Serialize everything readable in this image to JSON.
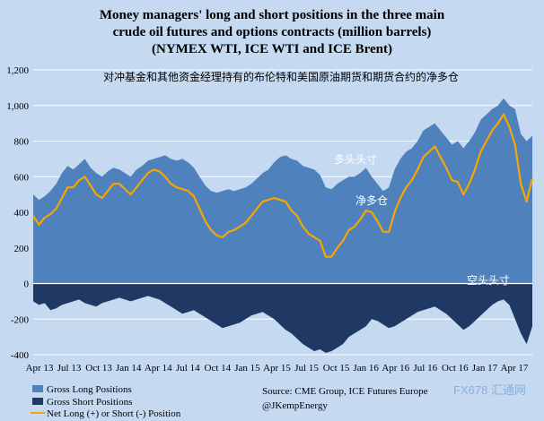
{
  "chart_data": {
    "type": "area",
    "title_lines": [
      "Money managers' long and short positions in the three main",
      "crude oil futures and options contracts (million barrels)",
      "(NYMEX WTI, ICE WTI and ICE Brent)"
    ],
    "subtitle": "对冲基金和其他资金经理持有的布伦特和美国原油期货和期货合约的净多仓",
    "ylim": [
      -400,
      1200
    ],
    "yticks": [
      "1,200",
      "1,000",
      "800",
      "600",
      "400",
      "200",
      "0",
      "-200",
      "-400"
    ],
    "ytick_values": [
      1200,
      1000,
      800,
      600,
      400,
      200,
      0,
      -200,
      -400
    ],
    "x_tick_labels": [
      "Apr 13",
      "Jul 13",
      "Oct 13",
      "Jan 14",
      "Apr 14",
      "Jul 14",
      "Oct 14",
      "Jan 15",
      "Apr 15",
      "Jul 15",
      "Oct 15",
      "Jan 16",
      "Apr 16",
      "Jul 16",
      "Oct 16",
      "Jan 17",
      "Apr 17"
    ],
    "x_start": "Apr 13",
    "x_end": "Jun 17",
    "series": [
      {
        "name": "Gross Long Positions",
        "color": "#4f81bd",
        "values": [
          500,
          470,
          490,
          520,
          560,
          620,
          660,
          640,
          670,
          700,
          650,
          620,
          600,
          630,
          650,
          640,
          620,
          600,
          640,
          660,
          690,
          700,
          710,
          720,
          700,
          690,
          700,
          680,
          650,
          600,
          550,
          520,
          510,
          520,
          530,
          520,
          530,
          540,
          560,
          590,
          620,
          640,
          680,
          710,
          720,
          700,
          690,
          660,
          650,
          640,
          610,
          540,
          530,
          560,
          580,
          600,
          600,
          620,
          650,
          600,
          560,
          520,
          540,
          640,
          700,
          740,
          760,
          800,
          860,
          880,
          900,
          860,
          820,
          780,
          800,
          760,
          800,
          850,
          920,
          950,
          980,
          1000,
          1040,
          1000,
          980,
          840,
          800,
          830
        ]
      },
      {
        "name": "Gross Short Positions",
        "color": "#1f3864",
        "values": [
          -100,
          -120,
          -110,
          -150,
          -140,
          -120,
          -110,
          -100,
          -90,
          -110,
          -120,
          -130,
          -110,
          -100,
          -90,
          -80,
          -90,
          -100,
          -90,
          -80,
          -70,
          -80,
          -90,
          -110,
          -130,
          -150,
          -170,
          -160,
          -150,
          -170,
          -190,
          -210,
          -230,
          -250,
          -240,
          -230,
          -220,
          -200,
          -180,
          -170,
          -160,
          -180,
          -200,
          -230,
          -260,
          -280,
          -310,
          -340,
          -360,
          -380,
          -370,
          -390,
          -380,
          -360,
          -340,
          -300,
          -280,
          -260,
          -240,
          -200,
          -210,
          -230,
          -250,
          -240,
          -220,
          -200,
          -180,
          -160,
          -150,
          -140,
          -130,
          -150,
          -170,
          -200,
          -230,
          -260,
          -240,
          -210,
          -180,
          -150,
          -120,
          -100,
          -90,
          -120,
          -200,
          -280,
          -340,
          -240
        ]
      },
      {
        "name": "Net Long (+) or Short (-) Position",
        "color": "#f7a600",
        "values": [
          380,
          330,
          370,
          390,
          420,
          480,
          540,
          540,
          580,
          600,
          550,
          500,
          480,
          520,
          560,
          560,
          530,
          500,
          540,
          580,
          620,
          640,
          630,
          600,
          560,
          540,
          530,
          520,
          490,
          420,
          350,
          300,
          270,
          260,
          290,
          300,
          320,
          340,
          380,
          420,
          460,
          470,
          480,
          470,
          460,
          410,
          380,
          320,
          280,
          260,
          240,
          150,
          150,
          200,
          240,
          300,
          320,
          360,
          410,
          400,
          350,
          290,
          290,
          400,
          480,
          540,
          580,
          640,
          710,
          740,
          770,
          710,
          650,
          580,
          570,
          500,
          560,
          640,
          740,
          800,
          860,
          900,
          950,
          880,
          780,
          560,
          460,
          590
        ]
      }
    ],
    "legend": {
      "position": "bottom-left",
      "items": [
        "Gross Long Positions",
        "Gross Short Positions",
        "Net Long (+) or Short (-) Position"
      ]
    },
    "annotations": {
      "long_label": "多头头寸",
      "net_label": "净多仓",
      "short_label": "空头头寸"
    },
    "source_lines": [
      "Source:  CME Group, ICE Futures Europe",
      "@JKempEnergy"
    ],
    "watermark": "FX678 汇通网"
  },
  "colors": {
    "background": "#c5d9f1",
    "long": "#4f81bd",
    "short": "#1f3864",
    "net": "#f7a600"
  }
}
